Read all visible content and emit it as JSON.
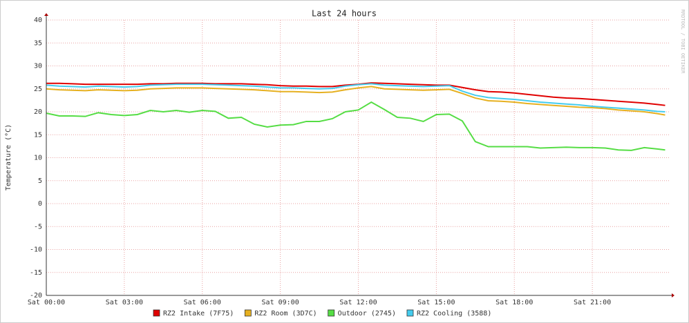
{
  "chart_data": {
    "type": "line",
    "title": "Last 24 hours",
    "y_label": "Temperature (°C)",
    "watermark": "RRDTOOL / TOBI OETIKER",
    "x": [
      0,
      0.5,
      1,
      1.5,
      2,
      2.5,
      3,
      3.5,
      4,
      4.5,
      5,
      5.5,
      6,
      6.5,
      7,
      7.5,
      8,
      8.5,
      9,
      9.5,
      10,
      10.5,
      11,
      11.5,
      12,
      12.5,
      13,
      13.5,
      14,
      14.5,
      15,
      15.5,
      16,
      16.5,
      17,
      17.5,
      18,
      18.5,
      19,
      19.5,
      20,
      20.5,
      21,
      21.5,
      22,
      22.5,
      23,
      23.5,
      23.8
    ],
    "xlim": [
      0,
      24
    ],
    "xticks": [
      {
        "value": 0,
        "label": "Sat 00:00"
      },
      {
        "value": 3,
        "label": "Sat 03:00"
      },
      {
        "value": 6,
        "label": "Sat 06:00"
      },
      {
        "value": 9,
        "label": "Sat 09:00"
      },
      {
        "value": 12,
        "label": "Sat 12:00"
      },
      {
        "value": 15,
        "label": "Sat 15:00"
      },
      {
        "value": 18,
        "label": "Sat 18:00"
      },
      {
        "value": 21,
        "label": "Sat 21:00"
      }
    ],
    "ylim": [
      -20,
      40
    ],
    "yticks": [
      -20,
      -15,
      -10,
      -5,
      0,
      5,
      10,
      15,
      20,
      25,
      30,
      35,
      40
    ],
    "grid": true,
    "series": [
      {
        "name": "RZ2 Intake (7F75)",
        "color": "#e00000",
        "values": [
          26.2,
          26.2,
          26.1,
          26,
          26,
          26,
          26,
          26,
          26.1,
          26.1,
          26.2,
          26.2,
          26.2,
          26.1,
          26.1,
          26.1,
          26,
          25.9,
          25.7,
          25.6,
          25.6,
          25.5,
          25.5,
          25.8,
          26,
          26.3,
          26.2,
          26.1,
          26,
          25.9,
          25.8,
          25.8,
          25.3,
          24.8,
          24.4,
          24.3,
          24.1,
          23.8,
          23.5,
          23.2,
          23,
          22.9,
          22.7,
          22.5,
          22.3,
          22.1,
          21.9,
          21.6,
          21.4
        ]
      },
      {
        "name": "RZ2 Room (3D7C)",
        "color": "#e6b020",
        "values": [
          25,
          24.8,
          24.7,
          24.6,
          24.8,
          24.7,
          24.6,
          24.7,
          25,
          25.1,
          25.2,
          25.2,
          25.2,
          25.1,
          25,
          24.9,
          24.8,
          24.6,
          24.4,
          24.4,
          24.3,
          24.2,
          24.3,
          24.8,
          25.2,
          25.5,
          25,
          24.9,
          24.8,
          24.7,
          24.8,
          24.9,
          24,
          23,
          22.4,
          22.3,
          22.1,
          21.8,
          21.6,
          21.4,
          21.2,
          21,
          20.9,
          20.7,
          20.4,
          20.2,
          20,
          19.6,
          19.3
        ]
      },
      {
        "name": "Outdoor (2745)",
        "color": "#55dd44",
        "values": [
          19.7,
          19.1,
          19.1,
          19,
          19.8,
          19.4,
          19.2,
          19.4,
          20.3,
          20,
          20.3,
          19.9,
          20.3,
          20.1,
          18.6,
          18.8,
          17.3,
          16.7,
          17.1,
          17.2,
          17.9,
          17.9,
          18.5,
          20,
          20.4,
          22.1,
          20.5,
          18.8,
          18.6,
          17.9,
          19.4,
          19.5,
          18,
          13.5,
          12.4,
          12.4,
          12.4,
          12.4,
          12.1,
          12.2,
          12.3,
          12.2,
          12.2,
          12.1,
          11.7,
          11.6,
          12.2,
          11.9,
          11.7
        ]
      },
      {
        "name": "RZ2 Cooling (3588)",
        "color": "#44ccee",
        "values": [
          25.8,
          25.6,
          25.5,
          25.4,
          25.6,
          25.5,
          25.4,
          25.5,
          25.8,
          25.9,
          26,
          26,
          26,
          25.9,
          25.8,
          25.7,
          25.6,
          25.4,
          25.2,
          25.2,
          25.1,
          25,
          25.1,
          25.6,
          25.9,
          26.1,
          25.8,
          25.7,
          25.6,
          25.5,
          25.6,
          25.7,
          24.5,
          23.6,
          23.1,
          22.9,
          22.7,
          22.4,
          22.1,
          21.9,
          21.7,
          21.5,
          21.2,
          21,
          20.8,
          20.6,
          20.4,
          20.1,
          20
        ]
      }
    ]
  }
}
